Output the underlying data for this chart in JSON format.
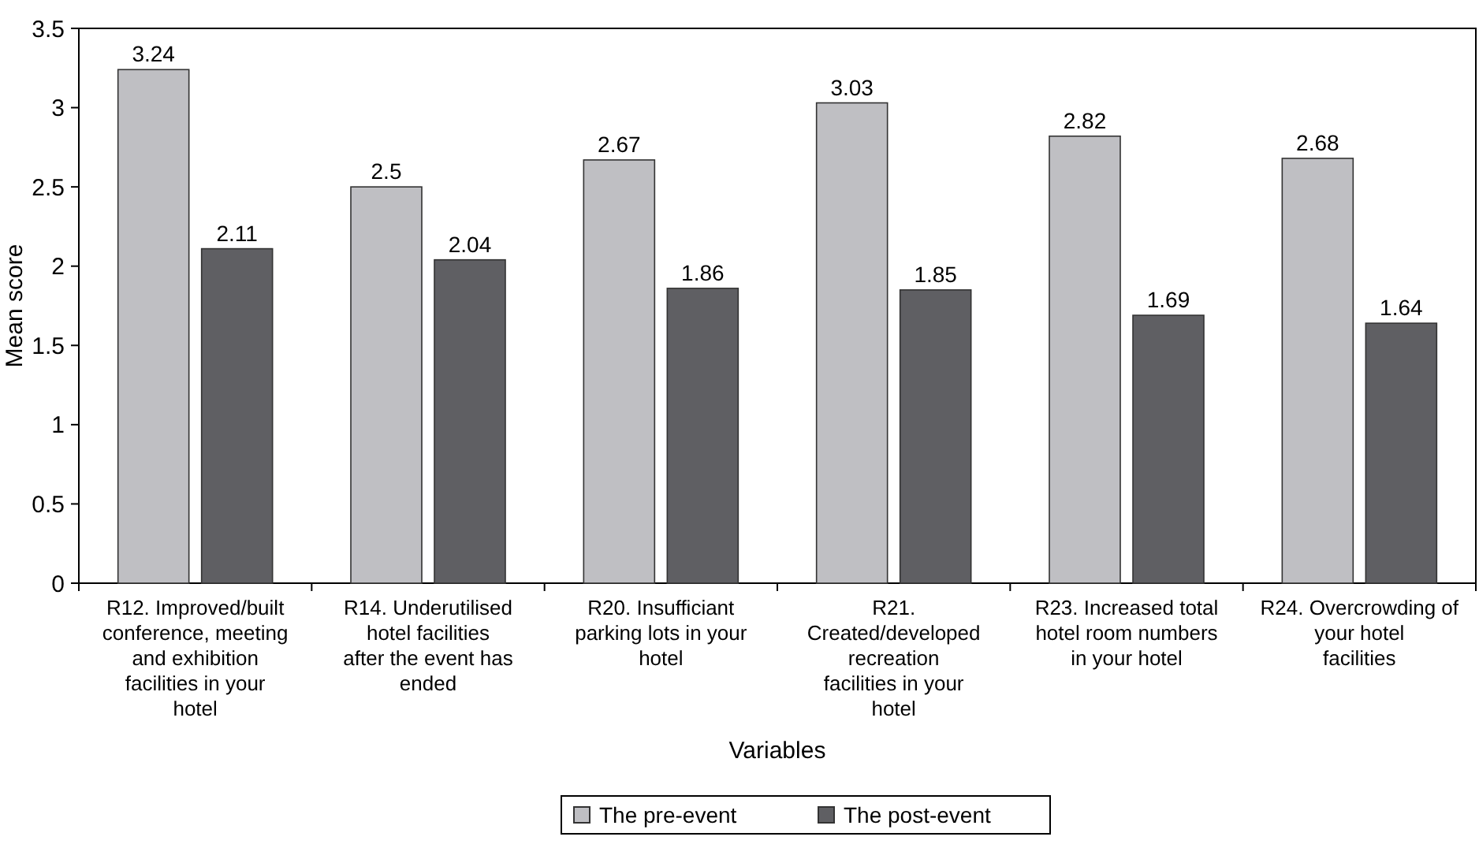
{
  "chart_data": {
    "type": "bar",
    "xlabel": "Variables",
    "ylabel": "Mean score",
    "categories": [
      "R12. Improved/built conference, meeting and exhibition facilities in your hotel",
      "R14. Underutilised hotel facilities after the event has ended",
      "R20. Insufficiant parking lots in your hotel",
      "R21. Created/developed recreation facilities in your hotel",
      "R23. Increased total hotel room numbers in your hotel",
      "R24. Overcrowding of your hotel facilities"
    ],
    "series": [
      {
        "name": "The pre-event",
        "color": "#bfbfc3",
        "values": [
          3.24,
          2.5,
          2.67,
          3.03,
          2.82,
          2.68
        ]
      },
      {
        "name": "The post-event",
        "color": "#5f5f63",
        "values": [
          2.11,
          2.04,
          1.86,
          1.85,
          1.69,
          1.64
        ]
      }
    ],
    "ylim": [
      0,
      3.5
    ],
    "yticks": [
      0,
      0.5,
      1,
      1.5,
      2,
      2.5,
      3,
      3.5
    ],
    "data_labels": true,
    "legend": "bottom",
    "grid": false
  }
}
